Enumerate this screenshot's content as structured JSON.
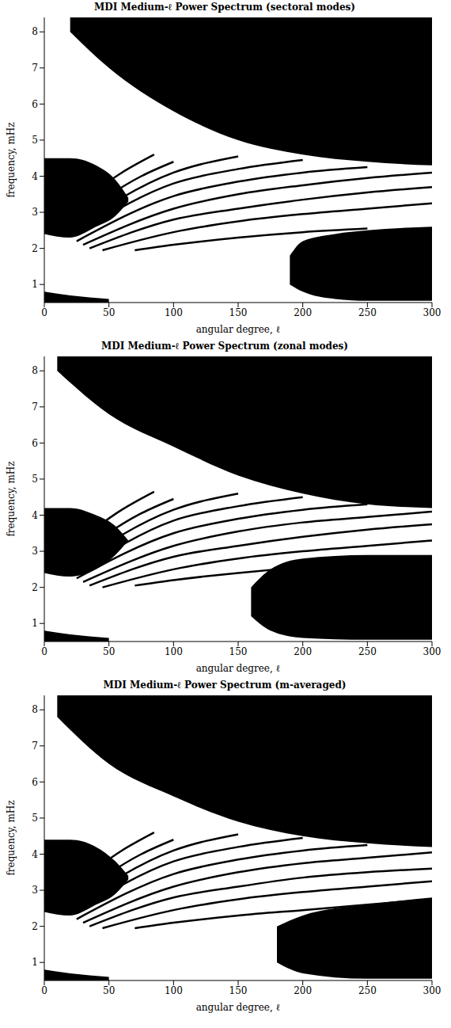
{
  "chart_data": [
    {
      "type": "line",
      "title": "MDI Medium-ℓ Power Spectrum (sectoral modes)",
      "x_label": "angular degree, ℓ",
      "y_label": "frequency, mHz",
      "xlim": [
        0,
        300
      ],
      "xticks": [
        0,
        50,
        100,
        150,
        200,
        250,
        300
      ],
      "ylim": [
        0.5,
        8.4
      ],
      "yticks": [
        1,
        2,
        3,
        4,
        5,
        6,
        7,
        8
      ],
      "series": [
        {
          "color": "#000000",
          "x": [
            70,
            100,
            150,
            200,
            250
          ],
          "values": [
            1.95,
            2.1,
            2.3,
            2.45,
            2.55
          ]
        },
        {
          "color": "#000000",
          "x": [
            45,
            100,
            150,
            200,
            250,
            300
          ],
          "values": [
            1.95,
            2.45,
            2.75,
            2.95,
            3.1,
            3.25
          ]
        },
        {
          "color": "#000000",
          "x": [
            35,
            100,
            150,
            200,
            250,
            300
          ],
          "values": [
            2.0,
            2.8,
            3.1,
            3.35,
            3.55,
            3.7
          ]
        },
        {
          "color": "#000000",
          "x": [
            30,
            100,
            150,
            200,
            250,
            300
          ],
          "values": [
            2.1,
            3.1,
            3.5,
            3.75,
            3.95,
            4.1
          ]
        },
        {
          "color": "#000000",
          "x": [
            25,
            100,
            150,
            200,
            250
          ],
          "values": [
            2.2,
            3.45,
            3.85,
            4.1,
            4.25
          ]
        },
        {
          "color": "#000000",
          "x": [
            25,
            100,
            150,
            200
          ],
          "values": [
            2.4,
            3.8,
            4.2,
            4.45
          ]
        },
        {
          "color": "#000000",
          "x": [
            20,
            100,
            150
          ],
          "values": [
            2.5,
            4.1,
            4.55
          ]
        },
        {
          "color": "#000000",
          "x": [
            20,
            75,
            100
          ],
          "values": [
            2.7,
            4.0,
            4.4
          ]
        },
        {
          "color": "#000000",
          "x": [
            15,
            60,
            85
          ],
          "values": [
            2.9,
            4.1,
            4.6
          ]
        }
      ],
      "bands": [
        {
          "color": "#000000",
          "x": [
            20,
            50,
            100,
            150,
            200,
            250,
            300
          ],
          "lower": [
            8.0,
            7.0,
            5.8,
            5.0,
            4.6,
            4.4,
            4.3
          ],
          "upper": [
            8.4,
            8.4,
            8.4,
            8.4,
            8.4,
            8.4,
            8.4
          ]
        },
        {
          "color": "#000000",
          "x": [
            0,
            20,
            40,
            55,
            65
          ],
          "lower": [
            2.4,
            2.3,
            2.6,
            2.9,
            3.3
          ],
          "upper": [
            4.5,
            4.5,
            4.3,
            3.9,
            3.4
          ]
        },
        {
          "color": "#000000",
          "x": [
            190,
            200,
            225,
            250,
            300
          ],
          "lower": [
            1.0,
            0.8,
            0.6,
            0.55,
            0.55
          ],
          "upper": [
            1.8,
            2.2,
            2.4,
            2.5,
            2.6
          ]
        },
        {
          "color": "#000000",
          "x": [
            0,
            20,
            50
          ],
          "lower": [
            0.5,
            0.5,
            0.5
          ],
          "upper": [
            0.8,
            0.7,
            0.6
          ]
        }
      ]
    },
    {
      "type": "line",
      "title": "MDI Medium-ℓ Power Spectrum (zonal modes)",
      "x_label": "angular degree, ℓ",
      "y_label": "frequency, mHz",
      "xlim": [
        0,
        300
      ],
      "xticks": [
        0,
        50,
        100,
        150,
        200,
        250,
        300
      ],
      "ylim": [
        0.5,
        8.4
      ],
      "yticks": [
        1,
        2,
        3,
        4,
        5,
        6,
        7,
        8
      ],
      "series": [
        {
          "color": "#000000",
          "x": [
            70,
            100,
            150,
            200,
            250
          ],
          "values": [
            2.05,
            2.2,
            2.4,
            2.55,
            2.65
          ]
        },
        {
          "color": "#000000",
          "x": [
            45,
            100,
            150,
            200,
            250,
            300
          ],
          "values": [
            2.0,
            2.5,
            2.8,
            3.0,
            3.15,
            3.3
          ]
        },
        {
          "color": "#000000",
          "x": [
            35,
            100,
            150,
            200,
            250,
            300
          ],
          "values": [
            2.05,
            2.85,
            3.15,
            3.4,
            3.6,
            3.75
          ]
        },
        {
          "color": "#000000",
          "x": [
            30,
            100,
            150,
            200,
            250,
            300
          ],
          "values": [
            2.15,
            3.15,
            3.55,
            3.8,
            3.95,
            4.1
          ]
        },
        {
          "color": "#000000",
          "x": [
            25,
            100,
            150,
            200,
            250
          ],
          "values": [
            2.25,
            3.5,
            3.9,
            4.15,
            4.3
          ]
        },
        {
          "color": "#000000",
          "x": [
            25,
            100,
            150,
            200
          ],
          "values": [
            2.4,
            3.85,
            4.25,
            4.5
          ]
        },
        {
          "color": "#000000",
          "x": [
            20,
            100,
            150
          ],
          "values": [
            2.55,
            4.15,
            4.6
          ]
        },
        {
          "color": "#000000",
          "x": [
            20,
            75,
            100
          ],
          "values": [
            2.75,
            4.05,
            4.45
          ]
        },
        {
          "color": "#000000",
          "x": [
            15,
            60,
            85
          ],
          "values": [
            2.95,
            4.15,
            4.65
          ]
        }
      ],
      "bands": [
        {
          "color": "#000000",
          "x": [
            10,
            50,
            100,
            150,
            200,
            250,
            300
          ],
          "lower": [
            8.0,
            6.8,
            5.9,
            5.1,
            4.6,
            4.3,
            4.2
          ],
          "upper": [
            8.4,
            8.4,
            8.4,
            8.4,
            8.4,
            8.4,
            8.4
          ]
        },
        {
          "color": "#000000",
          "x": [
            0,
            20,
            40,
            55,
            65
          ],
          "lower": [
            2.4,
            2.3,
            2.5,
            2.9,
            3.3
          ],
          "upper": [
            4.2,
            4.2,
            4.0,
            3.7,
            3.3
          ]
        },
        {
          "color": "#000000",
          "x": [
            160,
            175,
            200,
            250,
            300
          ],
          "lower": [
            1.2,
            0.8,
            0.6,
            0.55,
            0.55
          ],
          "upper": [
            2.0,
            2.5,
            2.8,
            2.9,
            2.9
          ]
        },
        {
          "color": "#000000",
          "x": [
            0,
            20,
            50
          ],
          "lower": [
            0.5,
            0.5,
            0.5
          ],
          "upper": [
            0.8,
            0.7,
            0.6
          ]
        }
      ]
    },
    {
      "type": "line",
      "title": "MDI Medium-ℓ Power Spectrum (m-averaged)",
      "x_label": "angular degree, ℓ",
      "y_label": "frequency, mHz",
      "xlim": [
        0,
        300
      ],
      "xticks": [
        0,
        50,
        100,
        150,
        200,
        250,
        300
      ],
      "ylim": [
        0.5,
        8.4
      ],
      "yticks": [
        1,
        2,
        3,
        4,
        5,
        6,
        7,
        8
      ],
      "series": [
        {
          "color": "#000000",
          "x": [
            70,
            100,
            150,
            200,
            250,
            300
          ],
          "values": [
            1.95,
            2.1,
            2.3,
            2.45,
            2.6,
            2.75
          ]
        },
        {
          "color": "#000000",
          "x": [
            45,
            100,
            150,
            200,
            250,
            300
          ],
          "values": [
            1.95,
            2.45,
            2.75,
            2.95,
            3.1,
            3.25
          ]
        },
        {
          "color": "#000000",
          "x": [
            35,
            100,
            150,
            200,
            250,
            300
          ],
          "values": [
            2.0,
            2.8,
            3.1,
            3.35,
            3.5,
            3.6
          ]
        },
        {
          "color": "#000000",
          "x": [
            30,
            100,
            150,
            200,
            250,
            300
          ],
          "values": [
            2.1,
            3.1,
            3.5,
            3.75,
            3.9,
            4.05
          ]
        },
        {
          "color": "#000000",
          "x": [
            25,
            100,
            150,
            200,
            250
          ],
          "values": [
            2.2,
            3.45,
            3.85,
            4.1,
            4.25
          ]
        },
        {
          "color": "#000000",
          "x": [
            25,
            100,
            150,
            200
          ],
          "values": [
            2.4,
            3.8,
            4.2,
            4.45
          ]
        },
        {
          "color": "#000000",
          "x": [
            20,
            100,
            150
          ],
          "values": [
            2.5,
            4.1,
            4.55
          ]
        },
        {
          "color": "#000000",
          "x": [
            20,
            75,
            100
          ],
          "values": [
            2.7,
            4.0,
            4.4
          ]
        },
        {
          "color": "#000000",
          "x": [
            15,
            60,
            85
          ],
          "values": [
            2.9,
            4.1,
            4.6
          ]
        }
      ],
      "bands": [
        {
          "color": "#000000",
          "x": [
            10,
            50,
            100,
            150,
            200,
            250,
            300
          ],
          "lower": [
            7.8,
            6.5,
            5.6,
            4.9,
            4.5,
            4.3,
            4.2
          ],
          "upper": [
            8.4,
            8.4,
            8.4,
            8.4,
            8.4,
            8.4,
            8.4
          ]
        },
        {
          "color": "#000000",
          "x": [
            0,
            20,
            40,
            55,
            65
          ],
          "lower": [
            2.4,
            2.3,
            2.6,
            2.9,
            3.3
          ],
          "upper": [
            4.4,
            4.4,
            4.2,
            3.8,
            3.4
          ]
        },
        {
          "color": "#000000",
          "x": [
            180,
            200,
            250,
            300
          ],
          "lower": [
            1.0,
            0.7,
            0.55,
            0.55
          ],
          "upper": [
            2.0,
            2.3,
            2.6,
            2.8
          ]
        },
        {
          "color": "#000000",
          "x": [
            0,
            20,
            50
          ],
          "lower": [
            0.5,
            0.5,
            0.5
          ],
          "upper": [
            0.8,
            0.7,
            0.6
          ]
        }
      ]
    }
  ]
}
